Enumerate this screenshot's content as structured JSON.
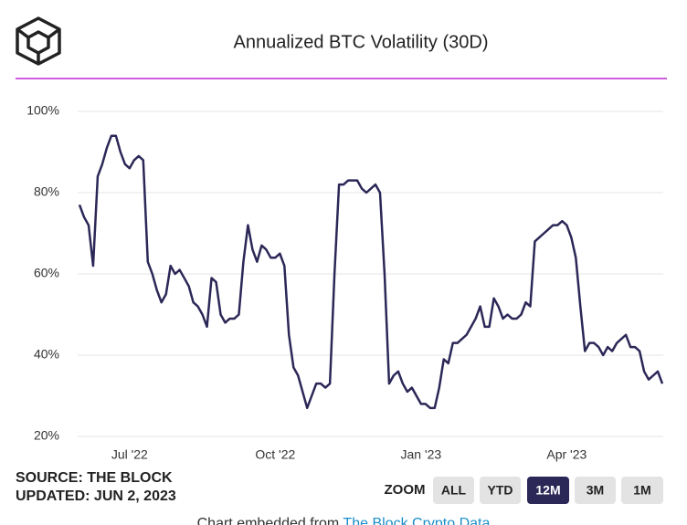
{
  "chart_data": {
    "type": "line",
    "title": "Annualized BTC Volatility (30D)",
    "categories": [
      null,
      null,
      null,
      null,
      null,
      null,
      null,
      null,
      null,
      null,
      null,
      "Jul '22",
      null,
      null,
      null,
      null,
      null,
      null,
      null,
      null,
      null,
      null,
      null,
      null,
      null,
      null,
      null,
      null,
      null,
      null,
      null,
      null,
      null,
      null,
      null,
      null,
      null,
      null,
      null,
      null,
      null,
      null,
      null,
      "Oct '22",
      null,
      null,
      null,
      null,
      null,
      null,
      null,
      null,
      null,
      null,
      null,
      null,
      null,
      null,
      null,
      null,
      null,
      null,
      null,
      null,
      null,
      null,
      null,
      null,
      null,
      null,
      null,
      null,
      null,
      null,
      null,
      "Jan '23",
      null,
      null,
      null,
      null,
      null,
      null,
      null,
      null,
      null,
      null,
      null,
      null,
      null,
      null,
      null,
      null,
      null,
      null,
      null,
      null,
      null,
      null,
      null,
      null,
      null,
      null,
      null,
      null,
      null,
      null,
      null,
      "Apr '23",
      null,
      null,
      null,
      null,
      null,
      null,
      null,
      null,
      null,
      null,
      null,
      null,
      null,
      null,
      null,
      null,
      null,
      null,
      null,
      null,
      null
    ],
    "series": [
      {
        "name": "Annualized BTC Volatility (30D)",
        "color": "#2b2757",
        "values": [
          77,
          74,
          72,
          62,
          84,
          87,
          91,
          94,
          94,
          90,
          87,
          86,
          88,
          89,
          88,
          63,
          60,
          56,
          53,
          55,
          62,
          60,
          61,
          59,
          57,
          53,
          52,
          50,
          47,
          59,
          58,
          50,
          48,
          49,
          49,
          50,
          63,
          72,
          66,
          63,
          67,
          66,
          64,
          64,
          65,
          62,
          45,
          37,
          35,
          31,
          27,
          30,
          33,
          33,
          32,
          33,
          60,
          82,
          82,
          83,
          83,
          83,
          81,
          80,
          81,
          82,
          80,
          60,
          33,
          35,
          36,
          33,
          31,
          32,
          30,
          28,
          28,
          27,
          27,
          32,
          39,
          38,
          43,
          43,
          44,
          45,
          47,
          49,
          52,
          47,
          47,
          54,
          52,
          49,
          50,
          49,
          49,
          50,
          53,
          52,
          68,
          69,
          70,
          71,
          72,
          72,
          73,
          72,
          69,
          64,
          52,
          41,
          43,
          43,
          42,
          40,
          42,
          41,
          43,
          44,
          45,
          42,
          42,
          41,
          36,
          34,
          35,
          36,
          33
        ]
      }
    ],
    "ylim": [
      20,
      100
    ],
    "yticks": [
      {
        "value": 20,
        "label": "20%"
      },
      {
        "value": 40,
        "label": "40%"
      },
      {
        "value": 60,
        "label": "60%"
      },
      {
        "value": 80,
        "label": "80%"
      },
      {
        "value": 100,
        "label": "100%"
      }
    ],
    "grid": true,
    "source": "SOURCE: THE BLOCK",
    "updated": "UPDATED: JUN 2, 2023",
    "zoom_label": "ZOOM",
    "zoom_buttons": [
      "ALL",
      "YTD",
      "12M",
      "3M",
      "1M"
    ],
    "zoom_active": "12M",
    "footer_text": "Chart embedded from",
    "footer_link": "The Block Crypto Data"
  }
}
